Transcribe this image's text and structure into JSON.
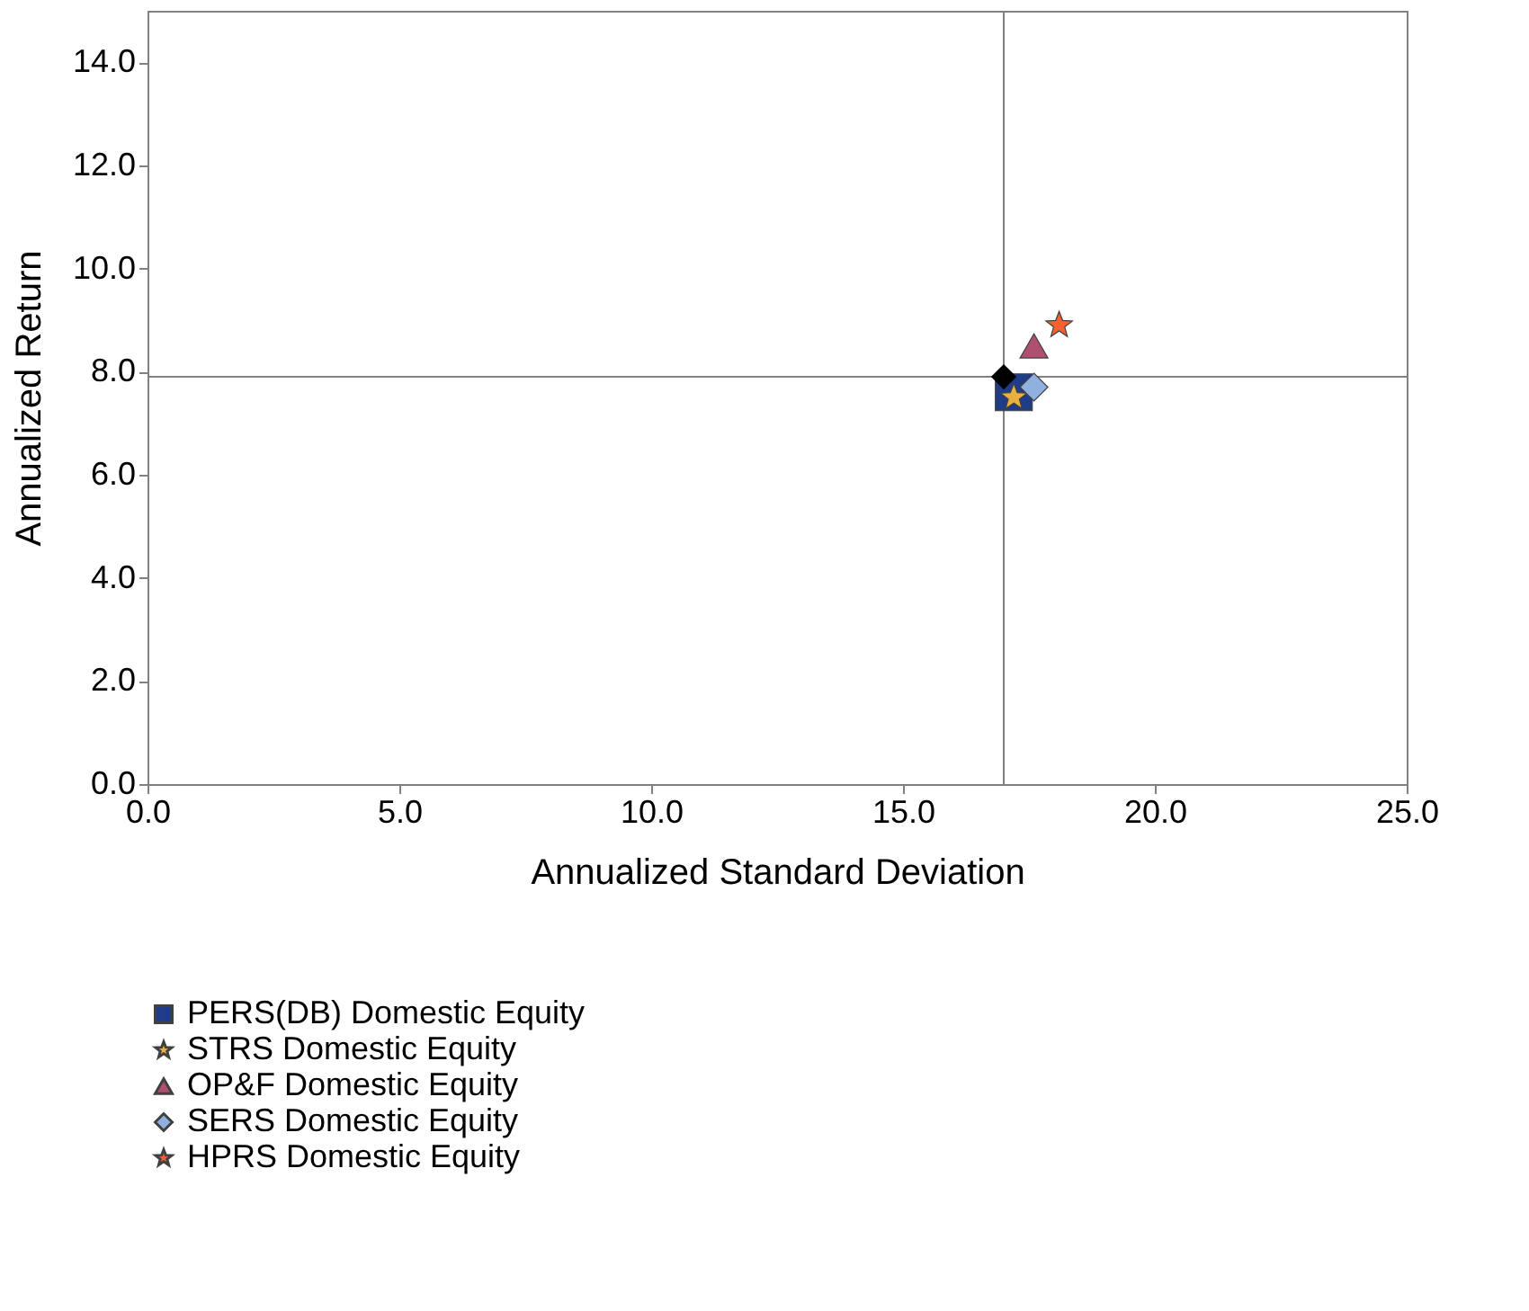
{
  "chart_data": {
    "type": "scatter",
    "xlabel": "Annualized Standard Deviation",
    "ylabel": "Annualized Return",
    "series": [
      {
        "name": "PERS(DB) Domestic Equity",
        "color": "#1f3c88",
        "marker": "square",
        "x": [
          17.2
        ],
        "values": [
          7.6
        ]
      },
      {
        "name": "STRS Domestic Equity",
        "color": "#e8b040",
        "marker": "star",
        "x": [
          17.2
        ],
        "values": [
          7.5
        ]
      },
      {
        "name": "OP&F Domestic Equity",
        "color": "#b05070",
        "marker": "triangle",
        "x": [
          17.6
        ],
        "values": [
          8.5
        ]
      },
      {
        "name": "SERS Domestic Equity",
        "color": "#90b0e0",
        "marker": "diamond",
        "x": [
          17.6
        ],
        "values": [
          7.7
        ]
      },
      {
        "name": "HPRS Domestic Equity",
        "color": "#f46030",
        "marker": "star",
        "x": [
          18.1
        ],
        "values": [
          8.9
        ]
      },
      {
        "color": "#000000",
        "marker": "diamond",
        "x": [
          17.0
        ],
        "values": [
          7.9
        ]
      }
    ],
    "ref_lines": [
      {
        "axis": "x",
        "value": 17.0,
        "color": "#808080"
      },
      {
        "axis": "y",
        "value": 7.9,
        "color": "#808080"
      }
    ],
    "xlim": [
      0,
      25
    ],
    "xticks": [
      {
        "value": 0,
        "label": "0.0"
      },
      {
        "value": 5,
        "label": "5.0"
      },
      {
        "value": 10,
        "label": "10.0"
      },
      {
        "value": 15,
        "label": "15.0"
      },
      {
        "value": 20,
        "label": "20.0"
      },
      {
        "value": 25,
        "label": "25.0"
      }
    ],
    "ylim": [
      0,
      15
    ],
    "yticks": [
      {
        "value": 0,
        "label": "0.0"
      },
      {
        "value": 2,
        "label": "2.0"
      },
      {
        "value": 4,
        "label": "4.0"
      },
      {
        "value": 6,
        "label": "6.0"
      },
      {
        "value": 8,
        "label": "8.0"
      },
      {
        "value": 10,
        "label": "10.0"
      },
      {
        "value": 12,
        "label": "12.0"
      },
      {
        "value": 14,
        "label": "14.0"
      }
    ],
    "grid": false,
    "legend": "bottom"
  }
}
